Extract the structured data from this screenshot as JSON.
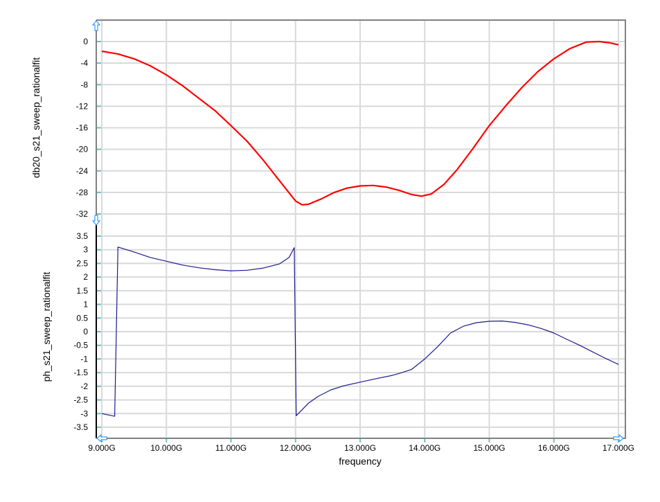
{
  "chart_data": [
    {
      "type": "line",
      "ylabel": "db20_s21_sweep_rationalfit",
      "ylim": [
        -32,
        0
      ],
      "yticks": [
        "0",
        "-4",
        "-8",
        "-12",
        "-16",
        "-20",
        "-24",
        "-28",
        "-32"
      ],
      "grid": true,
      "color": "#ff0000",
      "x": [
        9.0,
        9.25,
        9.5,
        9.75,
        10.0,
        10.25,
        10.5,
        10.75,
        11.0,
        11.25,
        11.5,
        11.75,
        12.0,
        12.1,
        12.2,
        12.4,
        12.6,
        12.8,
        13.0,
        13.2,
        13.4,
        13.6,
        13.8,
        13.95,
        14.1,
        14.3,
        14.5,
        14.75,
        15.0,
        15.25,
        15.5,
        15.75,
        16.0,
        16.25,
        16.5,
        16.7,
        16.85,
        17.0
      ],
      "y": [
        -1.8,
        -2.3,
        -3.2,
        -4.5,
        -6.2,
        -8.2,
        -10.5,
        -12.8,
        -15.6,
        -18.5,
        -22.0,
        -25.8,
        -29.6,
        -30.3,
        -30.2,
        -29.2,
        -28.0,
        -27.2,
        -26.8,
        -26.7,
        -27.0,
        -27.6,
        -28.4,
        -28.7,
        -28.3,
        -26.5,
        -23.8,
        -19.8,
        -15.6,
        -12.0,
        -8.6,
        -5.6,
        -3.2,
        -1.3,
        -0.1,
        0.0,
        -0.2,
        -0.6
      ]
    },
    {
      "type": "line",
      "ylabel": "ph_s21_sweep_rationalfit",
      "ylim": [
        -3.5,
        3.5
      ],
      "yticks": [
        "3.5",
        "3",
        "2.5",
        "2",
        "1.5",
        "1",
        "0.5",
        "0",
        "-0.5",
        "-1",
        "-1.5",
        "-2",
        "-2.5",
        "-3",
        "-3.5"
      ],
      "grid": true,
      "color": "#1a1a8c",
      "x": [
        9.0,
        9.2,
        9.25,
        9.5,
        9.75,
        10.0,
        10.25,
        10.5,
        10.75,
        11.0,
        11.25,
        11.5,
        11.75,
        11.9,
        11.98,
        12.01,
        12.2,
        12.35,
        12.55,
        12.75,
        13.0,
        13.25,
        13.5,
        13.65,
        13.8,
        14.0,
        14.2,
        14.4,
        14.6,
        14.8,
        15.0,
        15.2,
        15.4,
        15.6,
        15.8,
        16.0,
        16.2,
        16.4,
        16.6,
        16.8,
        17.0
      ],
      "y": [
        -3.0,
        -3.1,
        3.1,
        2.92,
        2.72,
        2.58,
        2.44,
        2.34,
        2.27,
        2.23,
        2.25,
        2.33,
        2.48,
        2.72,
        3.08,
        -3.08,
        -2.62,
        -2.37,
        -2.13,
        -1.98,
        -1.85,
        -1.72,
        -1.6,
        -1.5,
        -1.38,
        -1.0,
        -0.55,
        -0.05,
        0.2,
        0.33,
        0.38,
        0.39,
        0.34,
        0.25,
        0.12,
        -0.05,
        -0.28,
        -0.5,
        -0.74,
        -0.98,
        -1.2
      ]
    }
  ],
  "xaxis": {
    "label": "frequency",
    "xlim": [
      9,
      17
    ],
    "ticks": [
      "9.000G",
      "10.000G",
      "11.000G",
      "12.000G",
      "13.000G",
      "14.000G",
      "15.000G",
      "16.000G",
      "17.000G"
    ]
  }
}
